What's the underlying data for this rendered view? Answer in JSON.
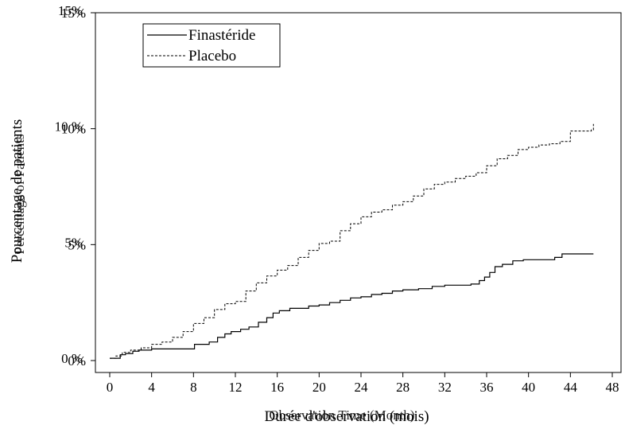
{
  "chart_data": {
    "type": "line",
    "xlabel": "Durée d'observation (mois)",
    "xlabel_overlay": "Observation Time (Month)",
    "ylabel": "Pourcentage de patients",
    "ylabel_overlay": "Percentage of Patients",
    "x_ticks": [
      "0",
      "4",
      "8",
      "12",
      "16",
      "20",
      "24",
      "28",
      "32",
      "36",
      "40",
      "44",
      "48"
    ],
    "xlim": [
      -1,
      48
    ],
    "ylim": [
      0,
      15
    ],
    "y_ticks": [
      {
        "value": 0,
        "label": "0%",
        "overlay": "0 %"
      },
      {
        "value": 5,
        "label": "5%",
        "overlay": "5%"
      },
      {
        "value": 10,
        "label": "10%",
        "overlay": "10 %"
      },
      {
        "value": 15,
        "label": "15%",
        "overlay": "15%"
      }
    ],
    "grid": false,
    "legend_position": "top-left",
    "series": [
      {
        "name": "Finastéride",
        "style": "solid",
        "points": [
          [
            0,
            0.1
          ],
          [
            0.8,
            0.1
          ],
          [
            1.0,
            0.25
          ],
          [
            1.5,
            0.3
          ],
          [
            2.2,
            0.4
          ],
          [
            2.8,
            0.45
          ],
          [
            4,
            0.5
          ],
          [
            7.8,
            0.5
          ],
          [
            8.1,
            0.7
          ],
          [
            9.5,
            0.8
          ],
          [
            10.3,
            1.0
          ],
          [
            11.0,
            1.15
          ],
          [
            11.6,
            1.25
          ],
          [
            12.5,
            1.35
          ],
          [
            13.3,
            1.45
          ],
          [
            14.2,
            1.65
          ],
          [
            15.0,
            1.85
          ],
          [
            15.6,
            2.05
          ],
          [
            16.2,
            2.15
          ],
          [
            17.2,
            2.25
          ],
          [
            19.0,
            2.35
          ],
          [
            20.0,
            2.4
          ],
          [
            21.0,
            2.5
          ],
          [
            22.0,
            2.6
          ],
          [
            23.0,
            2.7
          ],
          [
            24.0,
            2.75
          ],
          [
            25.0,
            2.85
          ],
          [
            26.0,
            2.9
          ],
          [
            27.0,
            3.0
          ],
          [
            28.0,
            3.05
          ],
          [
            29.5,
            3.1
          ],
          [
            30.8,
            3.2
          ],
          [
            32.0,
            3.25
          ],
          [
            34.5,
            3.3
          ],
          [
            35.3,
            3.45
          ],
          [
            35.8,
            3.6
          ],
          [
            36.3,
            3.8
          ],
          [
            36.8,
            4.05
          ],
          [
            37.5,
            4.15
          ],
          [
            38.5,
            4.3
          ],
          [
            39.5,
            4.35
          ],
          [
            42.5,
            4.45
          ],
          [
            43.2,
            4.6
          ],
          [
            46.2,
            4.6
          ]
        ]
      },
      {
        "name": "Placebo",
        "style": "dashed",
        "points": [
          [
            0,
            0.1
          ],
          [
            0.6,
            0.2
          ],
          [
            1.2,
            0.35
          ],
          [
            2.0,
            0.45
          ],
          [
            3.0,
            0.55
          ],
          [
            4.0,
            0.7
          ],
          [
            5.0,
            0.8
          ],
          [
            6.0,
            1.0
          ],
          [
            7.0,
            1.25
          ],
          [
            8.0,
            1.6
          ],
          [
            9.0,
            1.85
          ],
          [
            10.0,
            2.2
          ],
          [
            11.0,
            2.45
          ],
          [
            12.0,
            2.55
          ],
          [
            13.0,
            3.0
          ],
          [
            14.0,
            3.35
          ],
          [
            15.0,
            3.65
          ],
          [
            16.0,
            3.9
          ],
          [
            17.0,
            4.1
          ],
          [
            18.0,
            4.45
          ],
          [
            19.0,
            4.75
          ],
          [
            20.0,
            5.05
          ],
          [
            21.0,
            5.15
          ],
          [
            22.0,
            5.6
          ],
          [
            23.0,
            5.9
          ],
          [
            24.0,
            6.2
          ],
          [
            25.0,
            6.4
          ],
          [
            26.0,
            6.5
          ],
          [
            27.0,
            6.7
          ],
          [
            28.0,
            6.85
          ],
          [
            29.0,
            7.1
          ],
          [
            30.0,
            7.4
          ],
          [
            31.0,
            7.6
          ],
          [
            32.0,
            7.7
          ],
          [
            33.0,
            7.85
          ],
          [
            34.0,
            7.95
          ],
          [
            35.0,
            8.1
          ],
          [
            36.0,
            8.4
          ],
          [
            37.0,
            8.7
          ],
          [
            38.0,
            8.85
          ],
          [
            39.0,
            9.1
          ],
          [
            40.0,
            9.2
          ],
          [
            41.0,
            9.3
          ],
          [
            42.0,
            9.35
          ],
          [
            43.0,
            9.45
          ],
          [
            44.0,
            9.9
          ],
          [
            46.0,
            9.95
          ],
          [
            46.2,
            10.2
          ]
        ]
      }
    ]
  }
}
